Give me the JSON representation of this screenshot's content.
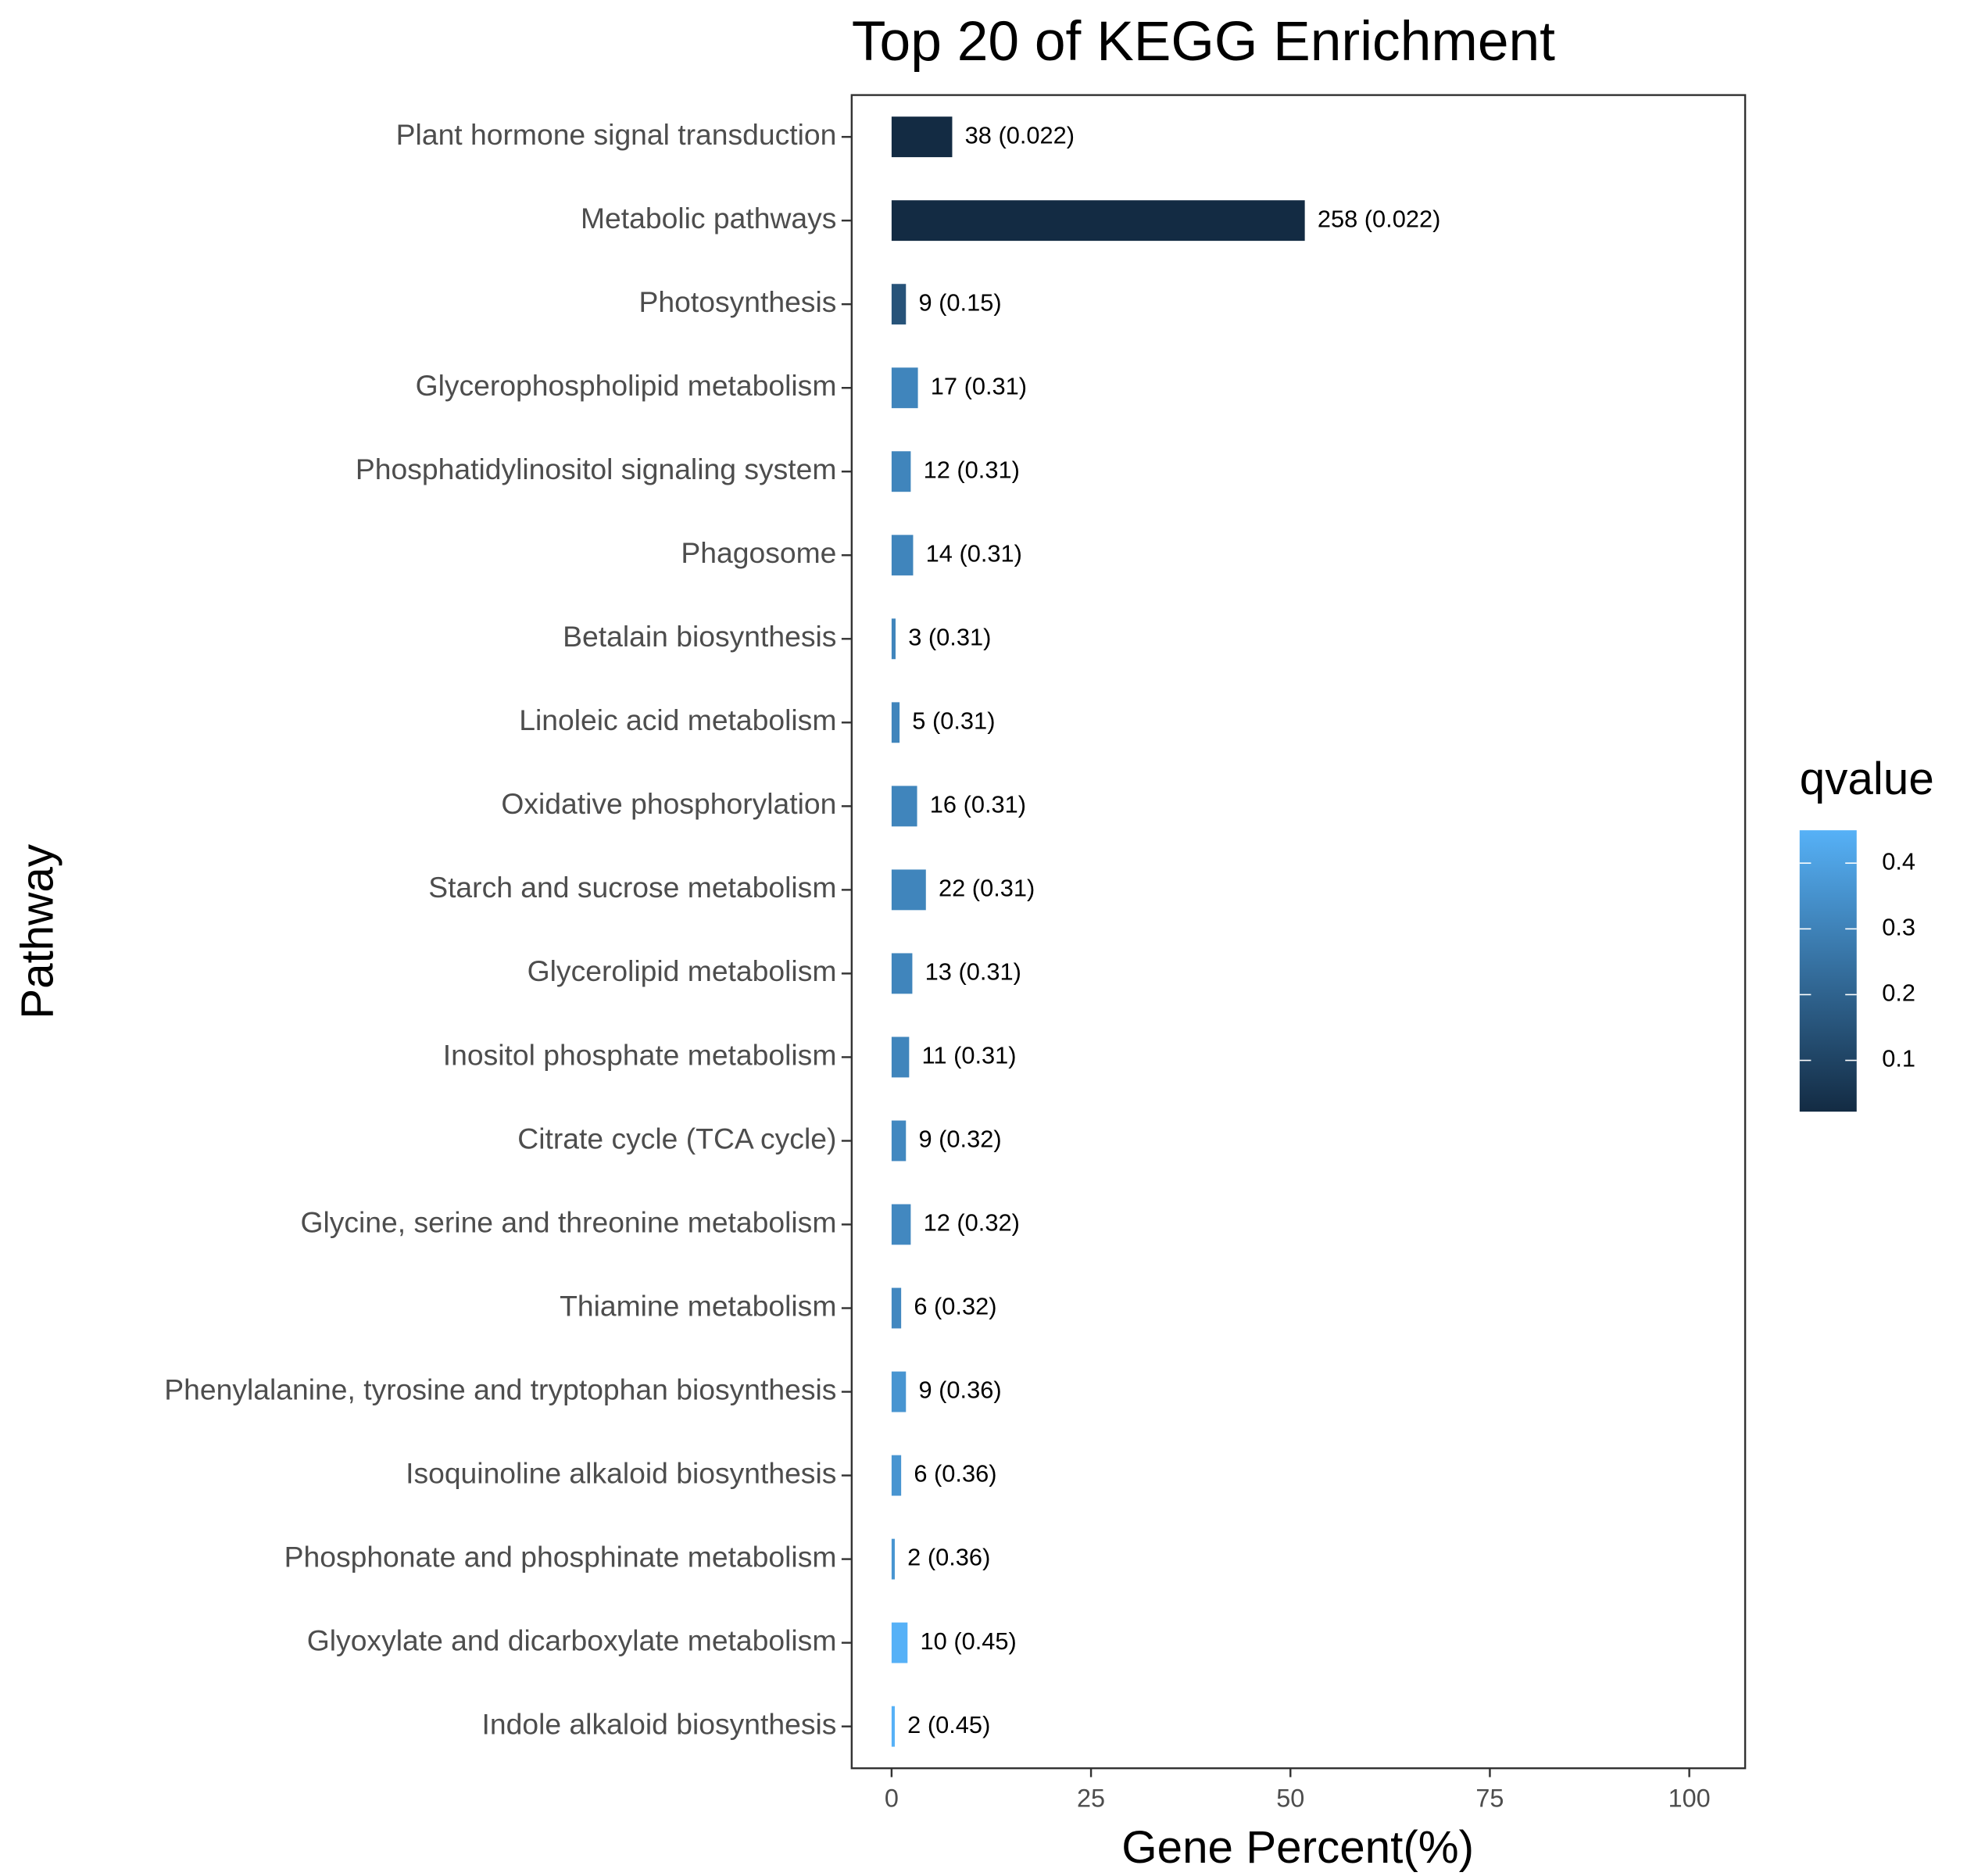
{
  "chart_data": {
    "type": "barh",
    "title": "Top 20 of KEGG Enrichment",
    "x_label": "Gene Percent(%)",
    "y_label": "Pathway",
    "categories": [
      "Plant hormone signal transduction",
      "Metabolic pathways",
      "Photosynthesis",
      "Glycerophospholipid metabolism",
      "Phosphatidylinositol signaling system",
      "Phagosome",
      "Betalain biosynthesis",
      "Linoleic acid metabolism",
      "Oxidative phosphorylation",
      "Starch and sucrose metabolism",
      "Glycerolipid metabolism",
      "Inositol phosphate metabolism",
      "Citrate cycle (TCA cycle)",
      "Glycine, serine and threonine metabolism",
      "Thiamine metabolism",
      "Phenylalanine, tyrosine and tryptophan biosynthesis",
      "Isoquinoline alkaloid biosynthesis",
      "Phosphonate and phosphinate metabolism",
      "Glyoxylate and dicarboxylate metabolism",
      "Indole alkaloid biosynthesis"
    ],
    "values": [
      7.6,
      51.8,
      1.8,
      3.3,
      2.4,
      2.7,
      0.5,
      1.0,
      3.2,
      4.3,
      2.6,
      2.2,
      1.8,
      2.4,
      1.2,
      1.8,
      1.2,
      0.4,
      2.0,
      0.4
    ],
    "bar_labels": [
      "38 (0.022)",
      "258 (0.022)",
      "9 (0.15)",
      "17 (0.31)",
      "12 (0.31)",
      "14 (0.31)",
      "3 (0.31)",
      "5 (0.31)",
      "16 (0.31)",
      "22 (0.31)",
      "13 (0.31)",
      "11 (0.31)",
      "9 (0.32)",
      "12 (0.32)",
      "6 (0.32)",
      "9 (0.36)",
      "6 (0.36)",
      "2 (0.36)",
      "10 (0.45)",
      "2 (0.45)"
    ],
    "qvalues": [
      0.022,
      0.022,
      0.15,
      0.31,
      0.31,
      0.31,
      0.31,
      0.31,
      0.31,
      0.31,
      0.31,
      0.31,
      0.32,
      0.32,
      0.32,
      0.36,
      0.36,
      0.36,
      0.45,
      0.45
    ],
    "xlim": [
      -5,
      107
    ],
    "xticks": [
      0,
      25,
      50,
      75,
      100
    ],
    "color_scale": {
      "title": "qvalue",
      "low": "#132B43",
      "high": "#56B1F7",
      "lim": [
        0.022,
        0.45
      ],
      "ticks": [
        0.1,
        0.2,
        0.3,
        0.4
      ]
    },
    "grid": false
  }
}
